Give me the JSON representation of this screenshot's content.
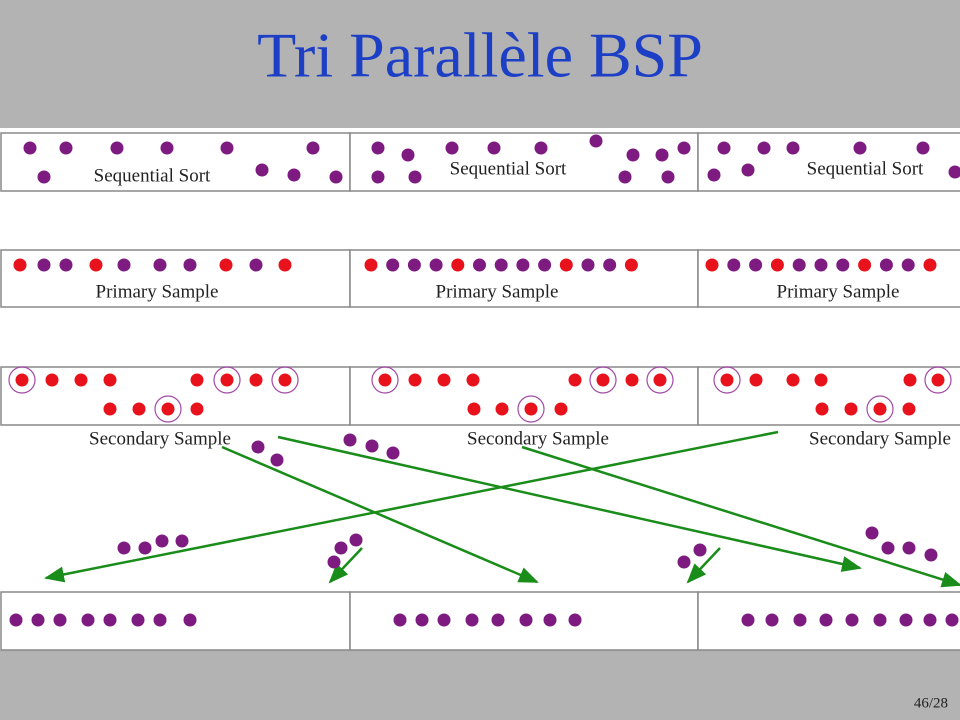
{
  "header": {
    "title": "Tri Parallèle BSP"
  },
  "rows": [
    {
      "labels": [
        "Sequential Sort",
        "Sequential Sort",
        "Sequential Sort"
      ]
    },
    {
      "labels": [
        "Primary Sample",
        "Primary Sample",
        "Primary Sample"
      ]
    },
    {
      "labels": [
        "Secondary Sample",
        "Secondary Sample",
        "Secondary Sample"
      ]
    }
  ],
  "footer": {
    "page": "46/28"
  }
}
